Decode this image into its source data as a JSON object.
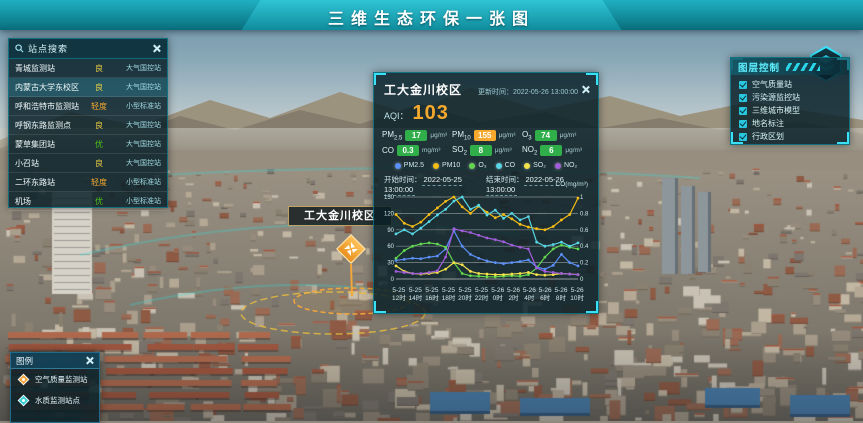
{
  "header": {
    "title": "三维生态环保一张图"
  },
  "station_panel": {
    "title": "站点搜索",
    "stations": [
      {
        "name": "青城监测站",
        "grade": "良",
        "grade_color": "#f5d442",
        "type": "大气国控站"
      },
      {
        "name": "内蒙古大学东校区",
        "grade": "良",
        "grade_color": "#f5d442",
        "type": "大气国控站"
      },
      {
        "name": "呼和浩特市监测站",
        "grade": "轻度",
        "grade_color": "#f7a92e",
        "type": "小型标准站"
      },
      {
        "name": "呼钢东路监测点",
        "grade": "良",
        "grade_color": "#f5d442",
        "type": "大气国控站"
      },
      {
        "name": "蒙草集团站",
        "grade": "优",
        "grade_color": "#52c41a",
        "type": "大气国控站"
      },
      {
        "name": "小召站",
        "grade": "良",
        "grade_color": "#f5d442",
        "type": "大气国控站"
      },
      {
        "name": "二环东路站",
        "grade": "轻度",
        "grade_color": "#f7a92e",
        "type": "小型标准站"
      },
      {
        "name": "机场",
        "grade": "优",
        "grade_color": "#52c41a",
        "type": "小型标准站"
      }
    ],
    "selected_index": 1
  },
  "detail_panel": {
    "title": "工大金川校区",
    "update_label": "更新时间：",
    "update_time": "2022-05-26 13:00:00",
    "aqi_label": "AQI：",
    "aqi_value": "103",
    "aqi_color": "#f7a92e",
    "pollutants": [
      {
        "base": "PM",
        "sub": "2.5",
        "value": "17",
        "unit": "μg/m³",
        "badge_color": "#2fae49"
      },
      {
        "base": "PM",
        "sub": "10",
        "value": "155",
        "unit": "μg/m³",
        "badge_color": "#f7a92e"
      },
      {
        "base": "O",
        "sub": "3",
        "value": "74",
        "unit": "μg/m³",
        "badge_color": "#2fae49"
      },
      {
        "base": "CO",
        "sub": "",
        "value": "0.3",
        "unit": "mg/m³",
        "badge_color": "#2fae49"
      },
      {
        "base": "SO",
        "sub": "2",
        "value": "8",
        "unit": "μg/m³",
        "badge_color": "#2fae49"
      },
      {
        "base": "NO",
        "sub": "2",
        "value": "6",
        "unit": "μg/m³",
        "badge_color": "#2fae49"
      }
    ],
    "time_range": {
      "start_label": "开始时间：",
      "start_value": "2022-05-25 13:00:00",
      "end_label": "结束时间：",
      "end_value": "2022-05-26 13:00:00"
    }
  },
  "chart_data": {
    "type": "line",
    "title": "",
    "x_interval": "1小时",
    "x_ticks": [
      {
        "date": "5-25",
        "hour": "12时"
      },
      {
        "date": "5-25",
        "hour": "14时"
      },
      {
        "date": "5-25",
        "hour": "16时"
      },
      {
        "date": "5-25",
        "hour": "18时"
      },
      {
        "date": "5-25",
        "hour": "20时"
      },
      {
        "date": "5-25",
        "hour": "22时"
      },
      {
        "date": "5-26",
        "hour": "0时"
      },
      {
        "date": "5-26",
        "hour": "2时"
      },
      {
        "date": "5-26",
        "hour": "4时"
      },
      {
        "date": "5-26",
        "hour": "6时"
      },
      {
        "date": "5-26",
        "hour": "8时"
      },
      {
        "date": "5-26",
        "hour": "10时"
      }
    ],
    "left_axis": {
      "min": 0,
      "max": 150,
      "ticks": [
        0,
        30,
        60,
        90,
        120,
        150
      ],
      "label": "μg/m³"
    },
    "right_axis": {
      "min": 0,
      "max": 1,
      "ticks": [
        0,
        0.2,
        0.4,
        0.6,
        0.8,
        1
      ],
      "title": "CO(mg/m³)"
    },
    "grid": true,
    "legend_position": "top",
    "series": [
      {
        "name": "PM2.5",
        "color": "#5b8ff9",
        "axis": "left",
        "values": [
          34,
          36,
          38,
          37,
          40,
          42,
          55,
          88,
          60,
          45,
          38,
          33,
          30,
          28,
          30,
          32,
          35,
          22,
          18,
          25,
          45,
          30,
          24
        ]
      },
      {
        "name": "PM10",
        "color": "#f6bd16",
        "axis": "left",
        "values": [
          118,
          102,
          96,
          104,
          118,
          130,
          142,
          150,
          132,
          120,
          133,
          122,
          112,
          118,
          110,
          100,
          95,
          92,
          90,
          96,
          108,
          118,
          148
        ]
      },
      {
        "name": "O₃",
        "color": "#62d64e",
        "axis": "left",
        "values": [
          38,
          52,
          60,
          64,
          66,
          64,
          58,
          30,
          10,
          6,
          5,
          4,
          4,
          5,
          6,
          5,
          8,
          20,
          40,
          55,
          62,
          58,
          55
        ]
      },
      {
        "name": "CO",
        "color": "#58d7e6",
        "axis": "right",
        "values": [
          0.55,
          0.6,
          0.55,
          0.62,
          0.7,
          0.78,
          0.85,
          0.95,
          1.0,
          0.85,
          0.9,
          0.78,
          0.84,
          0.74,
          0.8,
          0.72,
          0.76,
          0.45,
          0.4,
          0.42,
          0.45,
          0.4,
          0.44
        ]
      },
      {
        "name": "SO₂",
        "color": "#f4e34b",
        "axis": "left",
        "values": [
          24,
          14,
          10,
          9,
          10,
          12,
          18,
          30,
          26,
          14,
          10,
          9,
          8,
          8,
          9,
          10,
          12,
          8,
          7,
          8,
          10,
          9,
          8
        ]
      },
      {
        "name": "NO₂",
        "color": "#a25ddc",
        "axis": "left",
        "values": [
          14,
          12,
          10,
          10,
          12,
          15,
          40,
          92,
          88,
          85,
          80,
          75,
          72,
          68,
          62,
          58,
          55,
          20,
          14,
          12,
          10,
          9,
          8
        ]
      }
    ]
  },
  "layer_panel": {
    "title": "图层控制",
    "layers": [
      {
        "label": "空气质量站",
        "checked": true
      },
      {
        "label": "污染源监控站",
        "checked": true
      },
      {
        "label": "三维城市模型",
        "checked": true
      },
      {
        "label": "地名标注",
        "checked": true
      },
      {
        "label": "行政区划",
        "checked": true
      }
    ]
  },
  "legend_panel": {
    "title": "图例",
    "items": [
      {
        "label": "空气质量监测站",
        "color": "#f2a63b"
      },
      {
        "label": "水质监测站点",
        "color": "#35d0d8"
      }
    ]
  },
  "map": {
    "marker_label": "工大金川校区",
    "marker_color": "#f2a63b"
  },
  "colors": {
    "accent": "#3ae0f5",
    "panel_bg": "#071f27",
    "banner": "#148fa0"
  }
}
